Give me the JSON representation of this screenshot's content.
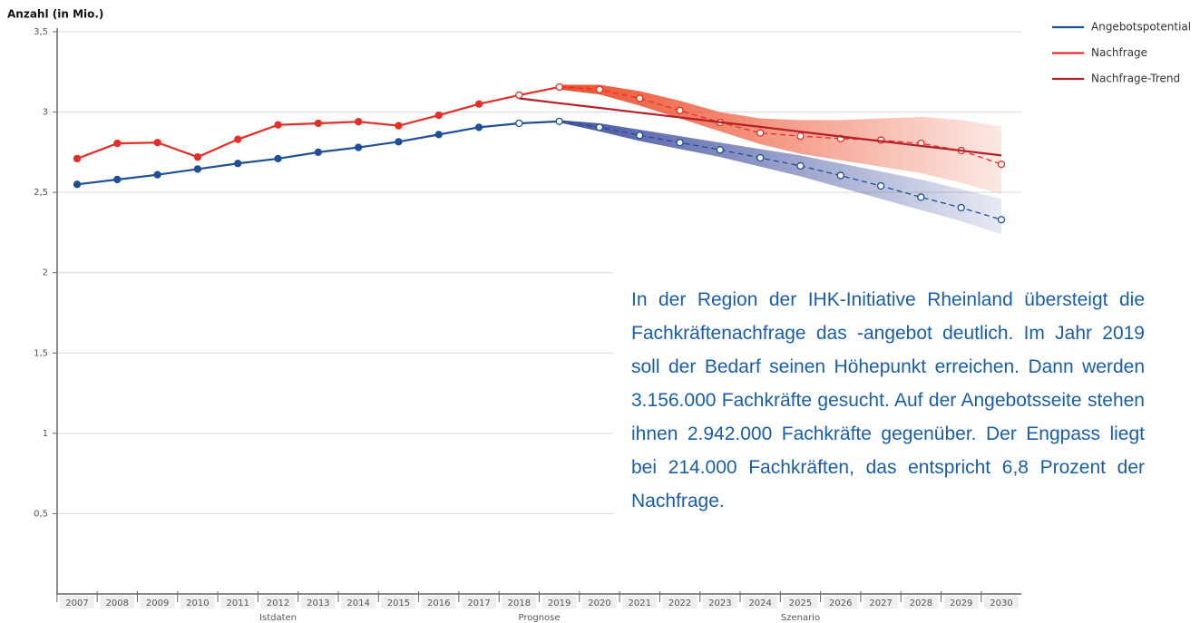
{
  "chart_data": {
    "type": "line",
    "y_label": "Anzahl (in Mio.)",
    "categories": [
      "2007",
      "2008",
      "2009",
      "2010",
      "2011",
      "2012",
      "2013",
      "2014",
      "2015",
      "2016",
      "2017",
      "2018",
      "2019",
      "2020",
      "2021",
      "2022",
      "2023",
      "2024",
      "2025",
      "2026",
      "2027",
      "2028",
      "2029",
      "2030"
    ],
    "ylim": [
      0,
      3.5
    ],
    "yticks": [
      {
        "value": 0.5,
        "label": "0,5"
      },
      1,
      {
        "value": 1.5,
        "label": "1,5"
      },
      2,
      {
        "value": 2.5,
        "label": "2,5"
      },
      3,
      {
        "value": 3.5,
        "label": "3,5"
      }
    ],
    "grid": true,
    "legend": "top-right",
    "phases": [
      {
        "label": "Istdaten",
        "first": "2007",
        "last": "2017"
      },
      {
        "label": "Prognose",
        "first": "2018",
        "last": "2019"
      },
      {
        "label": "Szenario",
        "first": "2020",
        "last": "2030"
      }
    ],
    "series": [
      {
        "name": "Angebotspotential",
        "color": "#1f4f96",
        "markers": true,
        "dashed_in_scenario": true,
        "values": [
          2.55,
          2.58,
          2.61,
          2.645,
          2.68,
          2.71,
          2.75,
          2.78,
          2.815,
          2.86,
          2.905,
          2.93,
          2.942,
          2.905,
          2.855,
          2.81,
          2.765,
          2.715,
          2.665,
          2.605,
          2.54,
          2.47,
          2.405,
          2.33
        ],
        "band_color": "#3a4a9a",
        "band_upper": [
          null,
          null,
          null,
          null,
          null,
          null,
          null,
          null,
          null,
          null,
          null,
          null,
          2.95,
          2.93,
          2.89,
          2.85,
          2.81,
          2.77,
          2.73,
          2.68,
          2.63,
          2.58,
          2.52,
          2.46
        ],
        "band_lower": [
          null,
          null,
          null,
          null,
          null,
          null,
          null,
          null,
          null,
          null,
          null,
          null,
          2.935,
          2.88,
          2.82,
          2.77,
          2.72,
          2.66,
          2.6,
          2.53,
          2.46,
          2.39,
          2.32,
          2.24
        ]
      },
      {
        "name": "Nachfrage",
        "color": "#e52e25",
        "markers": true,
        "dashed_in_scenario": true,
        "values": [
          2.71,
          2.805,
          2.81,
          2.72,
          2.83,
          2.92,
          2.93,
          2.94,
          2.915,
          2.98,
          3.05,
          3.105,
          3.156,
          3.14,
          3.085,
          3.01,
          2.935,
          2.87,
          2.85,
          2.835,
          2.825,
          2.805,
          2.76,
          2.675
        ],
        "band_color": "#ea4420",
        "band_upper": [
          null,
          null,
          null,
          null,
          null,
          null,
          null,
          null,
          null,
          null,
          null,
          null,
          3.17,
          3.17,
          3.13,
          3.07,
          3.0,
          2.96,
          2.95,
          2.95,
          2.96,
          2.97,
          2.95,
          2.91
        ],
        "band_lower": [
          null,
          null,
          null,
          null,
          null,
          null,
          null,
          null,
          null,
          null,
          null,
          null,
          3.14,
          3.11,
          3.04,
          2.96,
          2.88,
          2.8,
          2.74,
          2.7,
          2.66,
          2.62,
          2.56,
          2.49
        ]
      },
      {
        "name": "Nachfrage-Trend",
        "color": "#b42025",
        "markers": false,
        "dashed_in_scenario": false,
        "values": [
          null,
          null,
          null,
          null,
          null,
          null,
          null,
          null,
          null,
          null,
          null,
          3.085,
          3.055,
          3.026,
          2.996,
          2.967,
          2.937,
          2.908,
          2.878,
          2.848,
          2.819,
          2.789,
          2.76,
          2.73
        ]
      }
    ],
    "annotation": "In der Region der IHK-Initiative Rheinland übersteigt die Fachkräftenachfrage das -angebot deutlich. Im Jahr 2019 soll der Bedarf seinen Höhepunkt erreichen. Dann werden 3.156.000 Fachkräfte gesucht. Auf der Angebotsseite stehen ihnen 2.942.000 Fachkräfte gegenüber. Der Engpass liegt bei 214.000 Fachkräften, das entspricht 6,8 Prozent der Nachfrage."
  }
}
